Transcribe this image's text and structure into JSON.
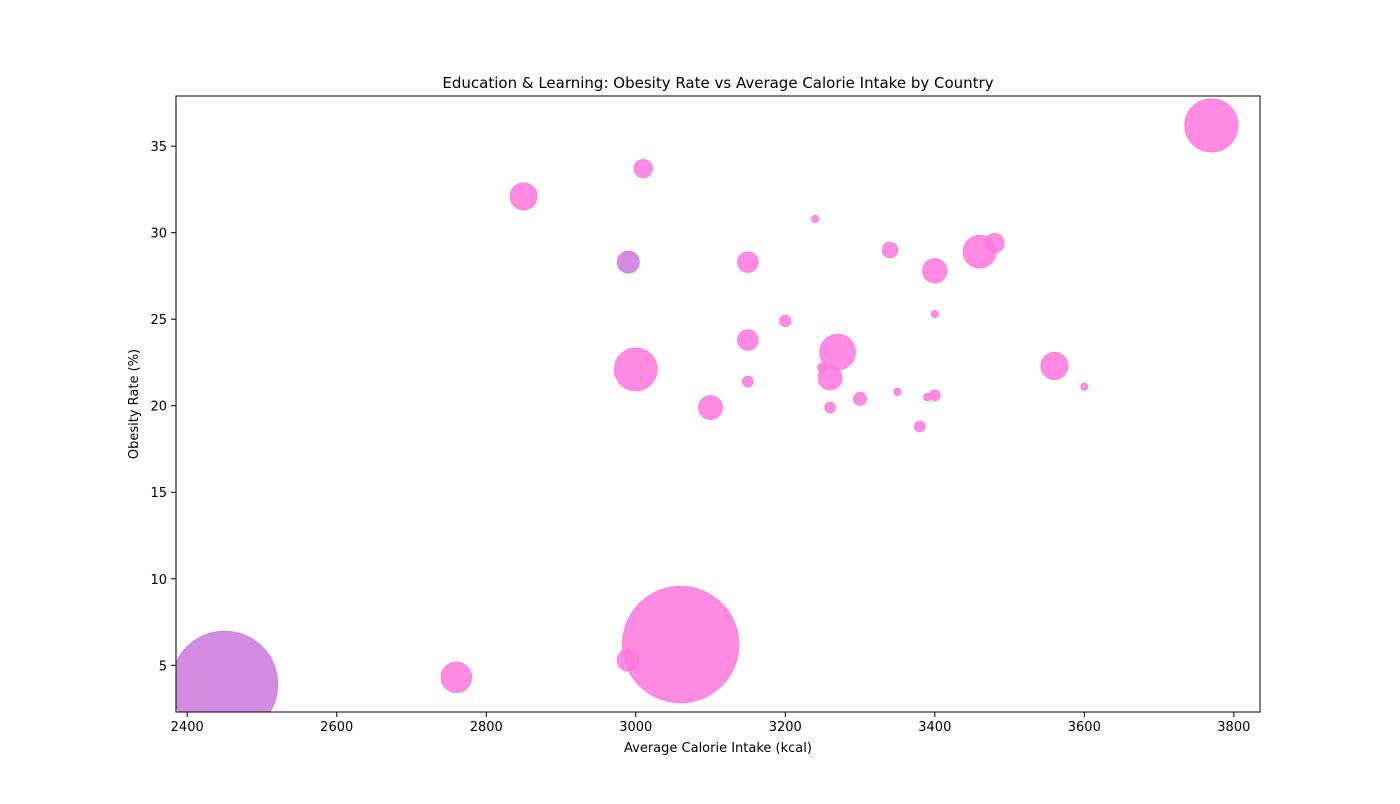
{
  "chart_data": {
    "type": "scatter",
    "title": "Education & Learning: Obesity Rate vs Average Calorie Intake by Country",
    "xlabel": "Average Calorie Intake (kcal)",
    "ylabel": "Obesity Rate (%)",
    "xlim": [
      2385,
      3835
    ],
    "ylim": [
      2.3,
      37.9
    ],
    "xticks": [
      2400,
      2600,
      2800,
      3000,
      3200,
      3400,
      3600,
      3800
    ],
    "yticks": [
      5,
      10,
      15,
      20,
      25,
      30,
      35
    ],
    "grid": false,
    "legend": "none",
    "bubble_size_scale": "relative",
    "colors": {
      "pink": "#ff77dd",
      "violet": "#cc77dd"
    },
    "points": [
      {
        "x": 2450,
        "y": 3.9,
        "size": 4000,
        "color": "violet"
      },
      {
        "x": 3060,
        "y": 6.2,
        "size": 4800,
        "color": "pink"
      },
      {
        "x": 2760,
        "y": 4.3,
        "size": 330,
        "color": "pink"
      },
      {
        "x": 2990,
        "y": 5.3,
        "size": 170,
        "color": "pink"
      },
      {
        "x": 3770,
        "y": 36.2,
        "size": 1000,
        "color": "pink"
      },
      {
        "x": 3010,
        "y": 33.7,
        "size": 120,
        "color": "pink"
      },
      {
        "x": 2850,
        "y": 32.1,
        "size": 260,
        "color": "pink"
      },
      {
        "x": 3240,
        "y": 30.8,
        "size": 18,
        "color": "pink"
      },
      {
        "x": 2990,
        "y": 28.3,
        "size": 170,
        "color": "violet"
      },
      {
        "x": 3150,
        "y": 28.3,
        "size": 150,
        "color": "pink"
      },
      {
        "x": 3340,
        "y": 29.0,
        "size": 85,
        "color": "pink"
      },
      {
        "x": 3480,
        "y": 29.4,
        "size": 130,
        "color": "pink"
      },
      {
        "x": 3460,
        "y": 28.9,
        "size": 380,
        "color": "pink"
      },
      {
        "x": 3400,
        "y": 27.8,
        "size": 210,
        "color": "pink"
      },
      {
        "x": 3400,
        "y": 25.3,
        "size": 18,
        "color": "pink"
      },
      {
        "x": 3200,
        "y": 24.9,
        "size": 45,
        "color": "pink"
      },
      {
        "x": 3150,
        "y": 23.8,
        "size": 150,
        "color": "pink"
      },
      {
        "x": 3270,
        "y": 23.1,
        "size": 450,
        "color": "pink"
      },
      {
        "x": 3000,
        "y": 22.1,
        "size": 650,
        "color": "pink"
      },
      {
        "x": 3560,
        "y": 22.3,
        "size": 260,
        "color": "pink"
      },
      {
        "x": 3250,
        "y": 22.2,
        "size": 35,
        "color": "pink"
      },
      {
        "x": 3260,
        "y": 21.6,
        "size": 200,
        "color": "pink"
      },
      {
        "x": 3150,
        "y": 21.4,
        "size": 40,
        "color": "pink"
      },
      {
        "x": 3600,
        "y": 21.1,
        "size": 18,
        "color": "pink"
      },
      {
        "x": 3350,
        "y": 20.8,
        "size": 18,
        "color": "pink"
      },
      {
        "x": 3400,
        "y": 20.6,
        "size": 40,
        "color": "pink"
      },
      {
        "x": 3390,
        "y": 20.5,
        "size": 20,
        "color": "pink"
      },
      {
        "x": 3300,
        "y": 20.4,
        "size": 60,
        "color": "pink"
      },
      {
        "x": 3100,
        "y": 19.9,
        "size": 200,
        "color": "pink"
      },
      {
        "x": 3260,
        "y": 19.9,
        "size": 40,
        "color": "pink"
      },
      {
        "x": 3380,
        "y": 18.8,
        "size": 40,
        "color": "pink"
      }
    ]
  }
}
